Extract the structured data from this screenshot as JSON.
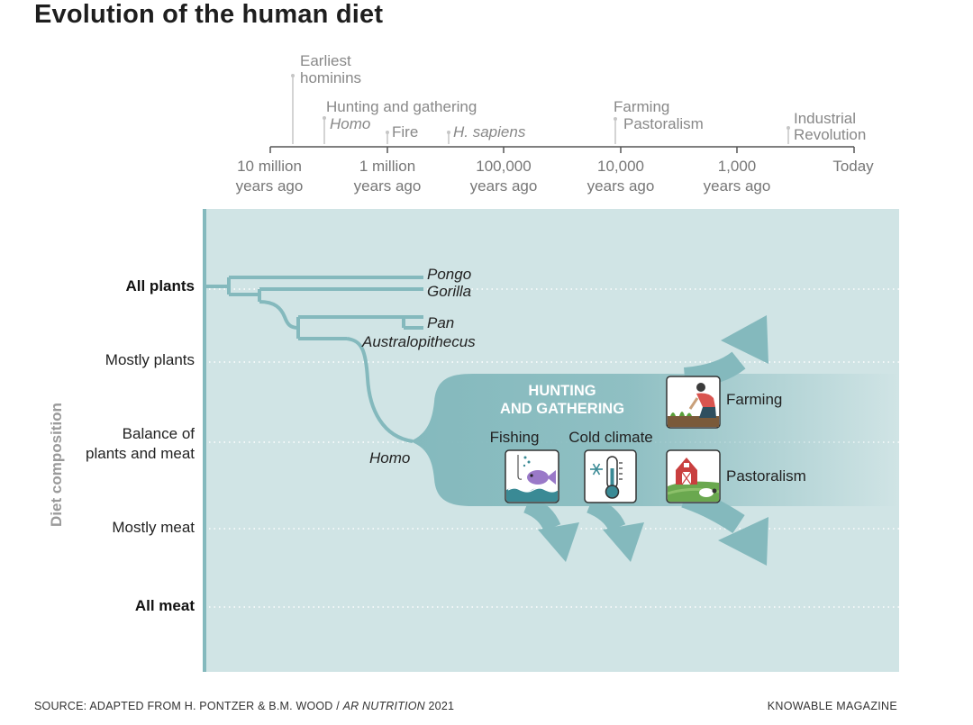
{
  "title": "Evolution of the human diet",
  "timeline": {
    "ticks": [
      {
        "line1": "10 million",
        "line2": "years ago"
      },
      {
        "line1": "1 million",
        "line2": "years ago"
      },
      {
        "line1": "100,000",
        "line2": "years ago"
      },
      {
        "line1": "10,000",
        "line2": "years ago"
      },
      {
        "line1": "1,000",
        "line2": "years ago"
      },
      {
        "line1": "Today",
        "line2": ""
      }
    ],
    "events": {
      "earliest_hominins_1": "Earliest",
      "earliest_hominins_2": "hominins",
      "hunting_gathering": "Hunting and gathering",
      "homo": "Homo",
      "fire": "Fire",
      "h_sapiens": "H. sapiens",
      "farming": "Farming",
      "pastoralism": "Pastoralism",
      "industrial_1": "Industrial",
      "industrial_2": "Revolution"
    }
  },
  "y_axis": {
    "title": "Diet composition",
    "levels": {
      "all_plants": "All plants",
      "mostly_plants": "Mostly plants",
      "balance_1": "Balance of",
      "balance_2": "plants and meat",
      "mostly_meat": "Mostly meat",
      "all_meat": "All meat"
    }
  },
  "species": {
    "pongo": "Pongo",
    "gorilla": "Gorilla",
    "pan": "Pan",
    "australopithecus": "Australopithecus",
    "homo": "Homo"
  },
  "stages": {
    "hunting_1": "HUNTING",
    "hunting_2": "AND GATHERING",
    "fishing": "Fishing",
    "cold_climate": "Cold climate",
    "farming": "Farming",
    "pastoralism": "Pastoralism"
  },
  "icons": [
    "fishing-icon",
    "cold-climate-icon",
    "farming-icon",
    "pastoralism-icon"
  ],
  "colors": {
    "panel": "#d0e4e5",
    "branch": "#84b9bd",
    "text": "#222222"
  },
  "footer": {
    "source_prefix": "SOURCE: ADAPTED FROM H. PONTZER & B.M. WOOD / ",
    "source_journal": "AR NUTRITION",
    "source_year": " 2021",
    "publisher": "KNOWABLE MAGAZINE"
  }
}
